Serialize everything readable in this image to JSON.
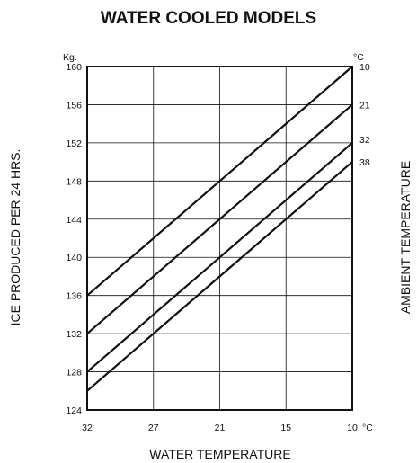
{
  "chart_data": {
    "type": "line",
    "title": "WATER COOLED MODELS",
    "xlabel": "WATER TEMPERATURE",
    "ylabel": "ICE PRODUCED PER 24 HRS.",
    "y2label": "AMBIENT TEMPERATURE",
    "y_unit": "Kg.",
    "x_unit": "°C",
    "y2_unit": "°C",
    "x_ticks": [
      "32",
      "27",
      "21",
      "15",
      "10"
    ],
    "y_ticks": [
      "124",
      "128",
      "132",
      "136",
      "140",
      "144",
      "148",
      "152",
      "156",
      "160"
    ],
    "x": [
      32,
      10
    ],
    "xlim": [
      32,
      10
    ],
    "ylim": [
      124,
      160
    ],
    "grid": true,
    "series": [
      {
        "name": "10",
        "values": [
          136,
          160
        ]
      },
      {
        "name": "21",
        "values": [
          132,
          156
        ]
      },
      {
        "name": "32",
        "values": [
          128,
          152
        ]
      },
      {
        "name": "38",
        "values": [
          126,
          150
        ]
      }
    ]
  }
}
